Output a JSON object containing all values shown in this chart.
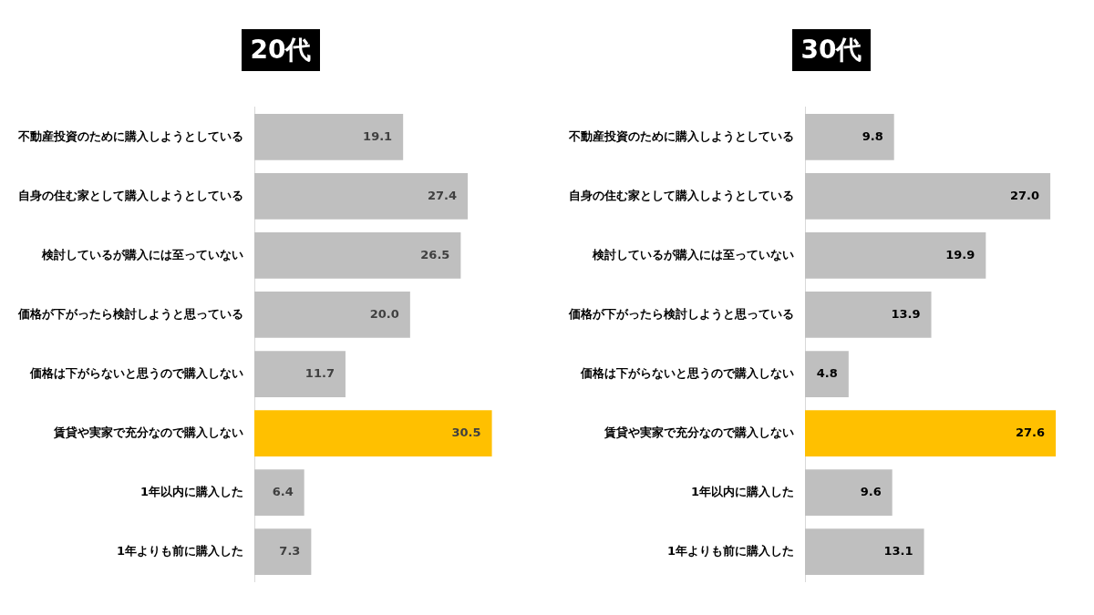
{
  "chart_data": [
    {
      "type": "bar",
      "orientation": "horizontal",
      "title": "20代",
      "categories": [
        "不動産投資のために購入しようとしている",
        "自身の住む家として購入しようとしている",
        "検討しているが購入には至っていない",
        "価格が下がったら検討しようと思っている",
        "価格は下がらないと思うので購入しない",
        "賃貸や実家で充分なので購入しない",
        "1年以内に購入した",
        "1年よりも前に購入した"
      ],
      "values": [
        19.1,
        27.4,
        26.5,
        20.0,
        11.7,
        30.5,
        6.4,
        7.3
      ],
      "value_labels": [
        "19.1",
        "27.4",
        "26.5",
        "20.0",
        "11.7",
        "30.5",
        "6.4",
        "7.3"
      ],
      "colors": [
        "#bfbfbf",
        "#bfbfbf",
        "#bfbfbf",
        "#bfbfbf",
        "#bfbfbf",
        "#ffc000",
        "#bfbfbf",
        "#bfbfbf"
      ],
      "grid": false,
      "legend": false
    },
    {
      "type": "bar",
      "orientation": "horizontal",
      "title": "30代",
      "categories": [
        "不動産投資のために購入しようとしている",
        "自身の住む家として購入しようとしている",
        "検討しているが購入には至っていない",
        "価格が下がったら検討しようと思っている",
        "価格は下がらないと思うので購入しない",
        "賃貸や実家で充分なので購入しない",
        "1年以内に購入した",
        "1年よりも前に購入した"
      ],
      "values": [
        9.8,
        27.0,
        19.9,
        13.9,
        4.8,
        27.6,
        9.6,
        13.1
      ],
      "value_labels": [
        "9.8",
        "27.0",
        "19.9",
        "13.9",
        "4.8",
        "27.6",
        "9.6",
        "13.1"
      ],
      "colors": [
        "#bfbfbf",
        "#bfbfbf",
        "#bfbfbf",
        "#bfbfbf",
        "#bfbfbf",
        "#ffc000",
        "#bfbfbf",
        "#bfbfbf"
      ],
      "grid": false,
      "legend": false
    }
  ]
}
